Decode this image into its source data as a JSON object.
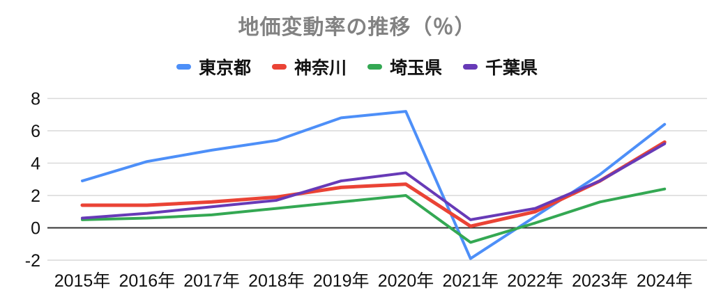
{
  "chart_data": {
    "type": "line",
    "title": "地価変動率の推移（％）",
    "categories": [
      "2015年",
      "2016年",
      "2017年",
      "2018年",
      "2019年",
      "2020年",
      "2021年",
      "2022年",
      "2023年",
      "2024年"
    ],
    "series": [
      {
        "name": "東京都",
        "color": "#4d8ff8",
        "values": [
          2.9,
          4.1,
          4.8,
          5.4,
          6.8,
          7.2,
          -1.9,
          0.7,
          3.3,
          6.4
        ]
      },
      {
        "name": "神奈川",
        "color": "#ea4335",
        "values": [
          1.4,
          1.4,
          1.6,
          1.9,
          2.5,
          2.7,
          0.1,
          1.0,
          2.9,
          5.3
        ]
      },
      {
        "name": "埼玉県",
        "color": "#34a853",
        "values": [
          0.5,
          0.6,
          0.8,
          1.2,
          1.6,
          2.0,
          -0.9,
          0.3,
          1.6,
          2.4
        ]
      },
      {
        "name": "千葉県",
        "color": "#673ab7",
        "values": [
          0.6,
          0.9,
          1.3,
          1.7,
          2.9,
          3.4,
          0.5,
          1.2,
          2.9,
          5.2
        ]
      }
    ],
    "y_ticks": [
      8,
      6,
      4,
      2,
      0,
      -2
    ],
    "ylim": [
      -2,
      8
    ],
    "grid": true,
    "legend_position": "top",
    "colors": {
      "title_text": "#828282",
      "axis_text": "#111111",
      "grid_line": "#d9d9d9",
      "zero_axis_line": "#333333",
      "background": "#ffffff"
    }
  }
}
